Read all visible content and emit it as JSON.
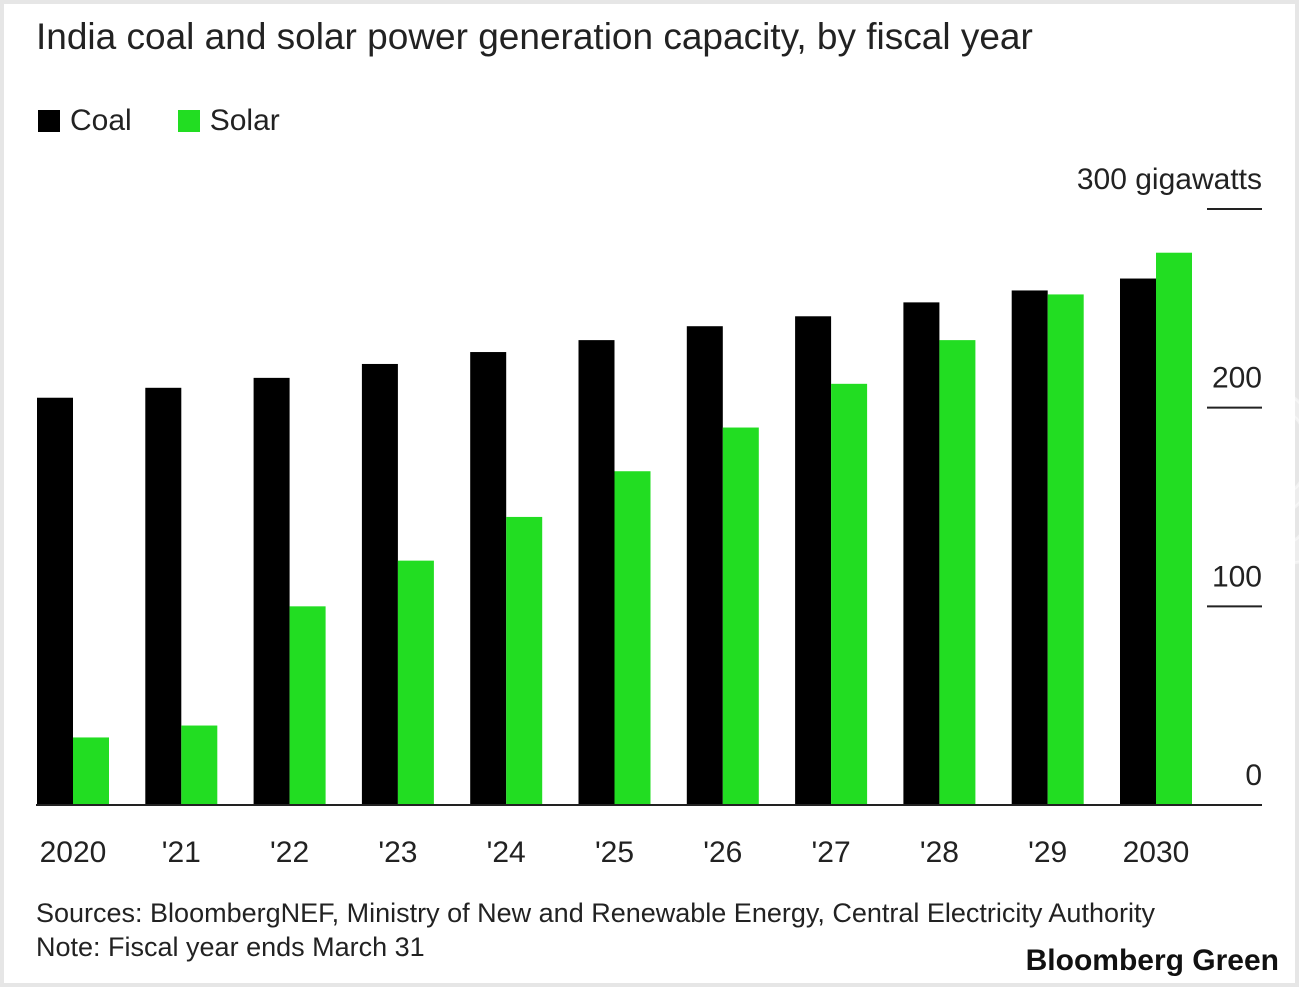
{
  "chart_data": {
    "type": "bar",
    "title": "India coal and solar power generation capacity, by fiscal year",
    "categories": [
      "2020",
      "'21",
      "'22",
      "'23",
      "'24",
      "'25",
      "'26",
      "'27",
      "'28",
      "'29",
      "2030"
    ],
    "series": [
      {
        "name": "Coal",
        "color": "#000000",
        "values": [
          205,
          210,
          215,
          222,
          228,
          234,
          241,
          246,
          253,
          259,
          265
        ]
      },
      {
        "name": "Solar",
        "color": "#22dd22",
        "values": [
          34,
          40,
          100,
          123,
          145,
          168,
          190,
          212,
          234,
          257,
          278
        ]
      }
    ],
    "y_ticks": [
      {
        "value": 0,
        "label": "0"
      },
      {
        "value": 100,
        "label": "100"
      },
      {
        "value": 200,
        "label": "200"
      },
      {
        "value": 300,
        "label": "300 gigawatts"
      }
    ],
    "ylim": [
      0,
      300
    ],
    "xlabel": "",
    "ylabel": "",
    "legend_position": "top-left",
    "grid": false
  },
  "footer": {
    "sources": "Sources: BloombergNEF, Ministry of New and Renewable Energy, Central Electricity Authority",
    "note": "Note: Fiscal year ends March 31",
    "brand": "Bloomberg Green"
  },
  "watermark": "Bloomberg"
}
